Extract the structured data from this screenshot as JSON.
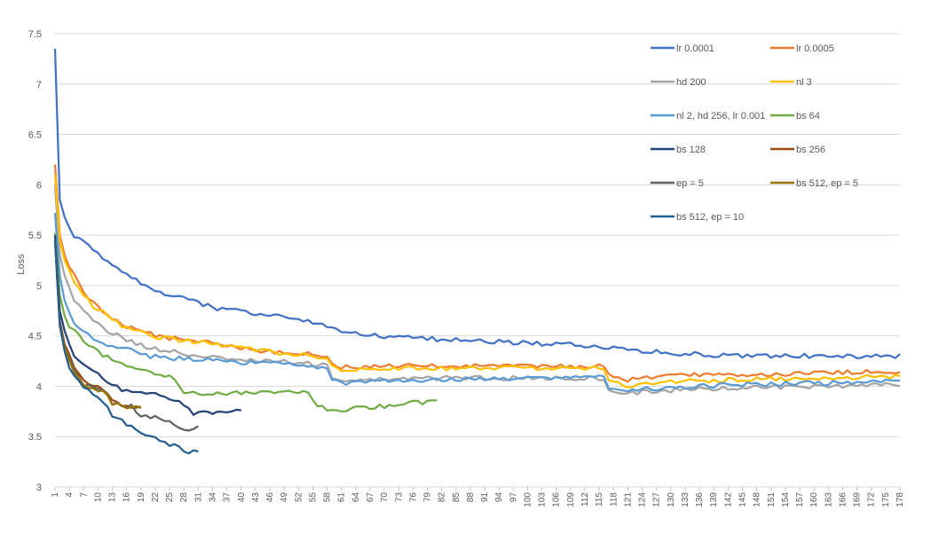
{
  "chart_data": {
    "type": "line",
    "title": "",
    "xlabel": "",
    "ylabel": "Loss",
    "ylim": [
      3,
      7.5
    ],
    "yticks": [
      "3",
      "3.5",
      "4",
      "4.5",
      "5",
      "5.5",
      "6",
      "6.5",
      "7",
      "7.5"
    ],
    "xlim": [
      1,
      178
    ],
    "xtick_start": 1,
    "xtick_step": 3,
    "grid": true,
    "legend_position": "top-right",
    "series": [
      {
        "name": "lr 0.0001",
        "color": "#4472C4",
        "x": [
          1,
          2,
          3,
          5,
          7,
          9,
          12,
          15,
          18,
          21,
          24,
          27,
          30,
          33,
          36,
          40,
          44,
          48,
          52,
          56,
          60,
          64,
          68,
          72,
          76,
          80,
          90,
          100,
          110,
          120,
          130,
          140,
          150,
          160,
          170,
          178
        ],
        "values": [
          7.35,
          5.85,
          5.68,
          5.5,
          5.42,
          5.35,
          5.22,
          5.15,
          5.05,
          4.98,
          4.92,
          4.88,
          4.85,
          4.8,
          4.76,
          4.74,
          4.72,
          4.7,
          4.66,
          4.62,
          4.56,
          4.52,
          4.5,
          4.48,
          4.48,
          4.47,
          4.45,
          4.43,
          4.41,
          4.37,
          4.33,
          4.31,
          4.3,
          4.3,
          4.3,
          4.3
        ]
      },
      {
        "name": "lr 0.0005",
        "color": "#ED7D31",
        "x": [
          1,
          2,
          3,
          5,
          7,
          9,
          12,
          15,
          18,
          21,
          25,
          30,
          35,
          40,
          45,
          50,
          55,
          58,
          59,
          61,
          63,
          66,
          70,
          80,
          90,
          100,
          110,
          116,
          117,
          119,
          121,
          125,
          130,
          140,
          150,
          160,
          170,
          178
        ],
        "values": [
          6.2,
          5.5,
          5.3,
          5.1,
          4.95,
          4.82,
          4.7,
          4.62,
          4.55,
          4.52,
          4.48,
          4.46,
          4.42,
          4.38,
          4.35,
          4.33,
          4.32,
          4.3,
          4.22,
          4.18,
          4.2,
          4.2,
          4.2,
          4.2,
          4.2,
          4.2,
          4.2,
          4.2,
          4.12,
          4.08,
          4.06,
          4.08,
          4.1,
          4.12,
          4.12,
          4.13,
          4.14,
          4.15
        ]
      },
      {
        "name": "hd 200",
        "color": "#A5A5A5",
        "x": [
          1,
          2,
          3,
          5,
          7,
          9,
          12,
          15,
          18,
          21,
          25,
          30,
          35,
          40,
          45,
          50,
          55,
          58,
          59,
          61,
          63,
          66,
          70,
          80,
          90,
          100,
          110,
          116,
          117,
          119,
          121,
          125,
          130,
          140,
          150,
          160,
          170,
          178
        ],
        "values": [
          6.0,
          5.3,
          5.1,
          4.85,
          4.75,
          4.65,
          4.55,
          4.48,
          4.42,
          4.38,
          4.35,
          4.3,
          4.28,
          4.26,
          4.25,
          4.24,
          4.22,
          4.2,
          4.1,
          4.05,
          4.06,
          4.06,
          4.07,
          4.08,
          4.08,
          4.08,
          4.08,
          4.08,
          3.98,
          3.94,
          3.93,
          3.95,
          3.96,
          3.98,
          3.99,
          4.0,
          4.01,
          4.02
        ]
      },
      {
        "name": "nl 3",
        "color": "#FFC000",
        "x": [
          1,
          2,
          3,
          5,
          7,
          9,
          12,
          15,
          18,
          21,
          25,
          30,
          35,
          40,
          45,
          50,
          55,
          58,
          59,
          61,
          63,
          66,
          70,
          80,
          90,
          100,
          110,
          116,
          117,
          119,
          121,
          125,
          130,
          140,
          150,
          160,
          170,
          178
        ],
        "values": [
          6.1,
          5.45,
          5.25,
          5.05,
          4.92,
          4.8,
          4.7,
          4.6,
          4.55,
          4.5,
          4.47,
          4.44,
          4.42,
          4.38,
          4.35,
          4.32,
          4.3,
          4.28,
          4.22,
          4.16,
          4.17,
          4.17,
          4.17,
          4.18,
          4.18,
          4.18,
          4.18,
          4.18,
          4.05,
          4.02,
          4.01,
          4.03,
          4.05,
          4.06,
          4.07,
          4.08,
          4.09,
          4.1
        ]
      },
      {
        "name": "nl 2, hd 256, lr 0.001",
        "color": "#5B9BD5",
        "x": [
          1,
          2,
          3,
          5,
          7,
          9,
          12,
          15,
          18,
          21,
          25,
          30,
          35,
          40,
          45,
          50,
          55,
          58,
          59,
          61,
          63,
          66,
          70,
          80,
          90,
          100,
          110,
          116,
          117,
          119,
          121,
          125,
          130,
          140,
          150,
          160,
          170,
          178
        ],
        "values": [
          5.72,
          5.1,
          4.85,
          4.62,
          4.55,
          4.48,
          4.42,
          4.38,
          4.34,
          4.3,
          4.28,
          4.27,
          4.25,
          4.24,
          4.23,
          4.22,
          4.2,
          4.18,
          4.08,
          4.03,
          4.04,
          4.04,
          4.05,
          4.06,
          4.07,
          4.08,
          4.09,
          4.1,
          3.98,
          3.95,
          3.95,
          3.97,
          3.99,
          4.01,
          4.02,
          4.03,
          4.04,
          4.05
        ]
      },
      {
        "name": "bs 64",
        "color": "#70AD47",
        "x": [
          1,
          2,
          3,
          4,
          5,
          7,
          9,
          11,
          14,
          17,
          20,
          23,
          26,
          28,
          30,
          33,
          36,
          40,
          45,
          50,
          54,
          56,
          58,
          60,
          63,
          66,
          70,
          75,
          80,
          81
        ],
        "values": [
          5.52,
          4.9,
          4.7,
          4.6,
          4.55,
          4.45,
          4.38,
          4.3,
          4.25,
          4.2,
          4.15,
          4.12,
          4.08,
          3.95,
          3.93,
          3.93,
          3.93,
          3.93,
          3.94,
          3.94,
          3.93,
          3.82,
          3.76,
          3.76,
          3.78,
          3.79,
          3.8,
          3.83,
          3.85,
          3.84
        ]
      },
      {
        "name": "bs 128",
        "color": "#264478",
        "x": [
          1,
          2,
          3,
          4,
          5,
          7,
          9,
          11,
          13,
          15,
          17,
          19,
          21,
          23,
          25,
          27,
          28,
          30,
          32,
          34,
          36,
          38,
          40
        ],
        "values": [
          5.5,
          4.75,
          4.55,
          4.42,
          4.32,
          4.22,
          4.15,
          4.08,
          4.02,
          3.96,
          3.94,
          3.93,
          3.92,
          3.91,
          3.88,
          3.87,
          3.8,
          3.73,
          3.74,
          3.74,
          3.74,
          3.74,
          3.75
        ]
      },
      {
        "name": "bs 256",
        "color": "#9E480E",
        "x": [
          1,
          2,
          3,
          4,
          5,
          7,
          9,
          11,
          13,
          15,
          17,
          19
        ],
        "values": [
          5.45,
          4.65,
          4.42,
          4.3,
          4.18,
          4.05,
          4.0,
          3.98,
          3.86,
          3.79,
          3.79,
          3.78
        ]
      },
      {
        "name": "ep = 5",
        "color": "#636363",
        "x": [
          1,
          2,
          3,
          4,
          5,
          7,
          9,
          11,
          13,
          15,
          17,
          19,
          21,
          23,
          25,
          27,
          29,
          31
        ],
        "values": [
          5.45,
          4.62,
          4.4,
          4.28,
          4.15,
          4.02,
          3.98,
          3.97,
          3.84,
          3.8,
          3.8,
          3.72,
          3.69,
          3.68,
          3.65,
          3.57,
          3.58,
          3.6
        ]
      },
      {
        "name": "bs 512, ep = 5",
        "color": "#997300",
        "x": [
          1,
          2,
          3,
          4,
          5,
          7,
          9,
          11,
          13,
          15,
          17,
          19
        ],
        "values": [
          5.45,
          4.6,
          4.4,
          4.25,
          4.15,
          4.02,
          3.98,
          3.96,
          3.83,
          3.79,
          3.79,
          3.78
        ]
      },
      {
        "name": "bs 512, ep = 10",
        "color": "#255E91",
        "x": [
          1,
          2,
          3,
          4,
          5,
          7,
          9,
          11,
          13,
          15,
          17,
          19,
          21,
          23,
          25,
          27,
          29,
          31
        ],
        "values": [
          5.45,
          4.6,
          4.35,
          4.2,
          4.1,
          3.98,
          3.92,
          3.85,
          3.72,
          3.65,
          3.6,
          3.55,
          3.5,
          3.46,
          3.42,
          3.39,
          3.35,
          3.34
        ]
      }
    ]
  }
}
